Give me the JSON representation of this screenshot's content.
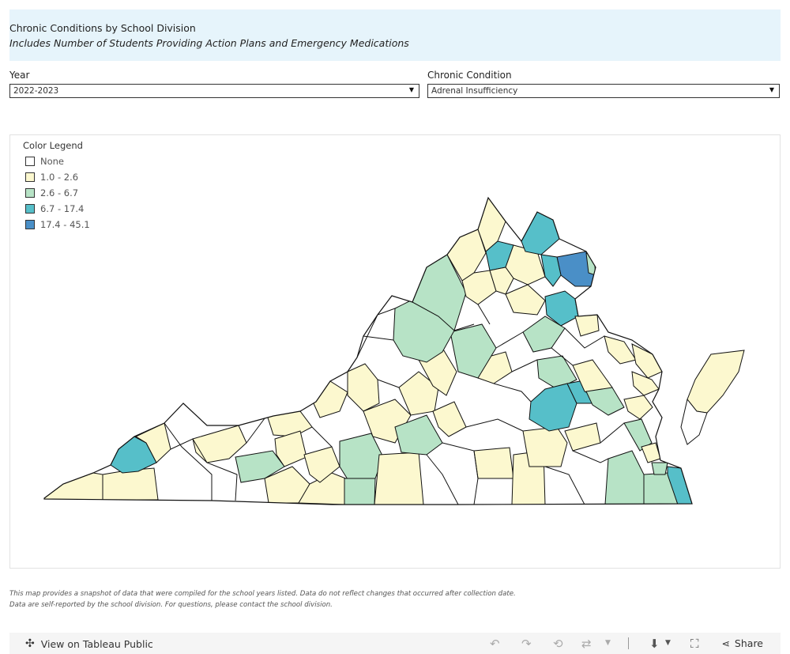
{
  "header": {
    "title": "Chronic Conditions by School Division",
    "subtitle": "Includes Number of Students Providing Action Plans and Emergency Medications"
  },
  "filters": {
    "year_label": "Year",
    "year_value": "2022-2023",
    "condition_label": "Chronic Condition",
    "condition_value": "Adrenal Insufficiency"
  },
  "legend": {
    "title": "Color Legend",
    "items": [
      {
        "label": "None",
        "color": "#ffffff"
      },
      {
        "label": "1.0 - 2.6",
        "color": "#fcf8cf"
      },
      {
        "label": "2.6 - 6.7",
        "color": "#b7e3c6"
      },
      {
        "label": "6.7 - 17.4",
        "color": "#56bfc9"
      },
      {
        "label": "17.4 - 45.1",
        "color": "#4a8fc7"
      }
    ]
  },
  "map": {
    "region": "Virginia school divisions",
    "border_color": "#111111"
  },
  "footnotes": {
    "line1": "This map provides a snapshot of data that were compiled for the  school years listed. Data do not reflect changes that occurred after collection date.",
    "line2": "Data are self-reported by the school division. For questions, please contact the school division."
  },
  "toolbar": {
    "view_label": "View on Tableau Public",
    "share_label": "Share"
  }
}
